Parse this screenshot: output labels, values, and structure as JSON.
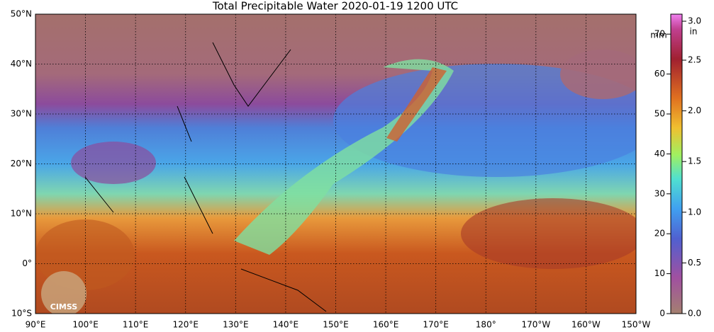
{
  "title": "Total Precipitable Water  2020-01-19 1200 UTC",
  "latitude_labels": [
    "50°N",
    "40°N",
    "30°N",
    "20°N",
    "10°N",
    "0°",
    "10°S"
  ],
  "longitude_labels": [
    "90°E",
    "100°E",
    "110°E",
    "120°E",
    "130°E",
    "140°E",
    "150°E",
    "160°E",
    "170°E",
    "180°",
    "170°W",
    "160°W",
    "150°W"
  ],
  "colorbar": {
    "mm_unit": "mm",
    "in_unit": "in",
    "mm_ticks": [
      "0",
      "10",
      "20",
      "30",
      "40",
      "50",
      "60",
      "70"
    ],
    "in_ticks": [
      "0.0",
      "0.5",
      "1.0",
      "1.5",
      "2.0",
      "2.5",
      "3.0"
    ]
  },
  "logo": "CIMSS"
}
